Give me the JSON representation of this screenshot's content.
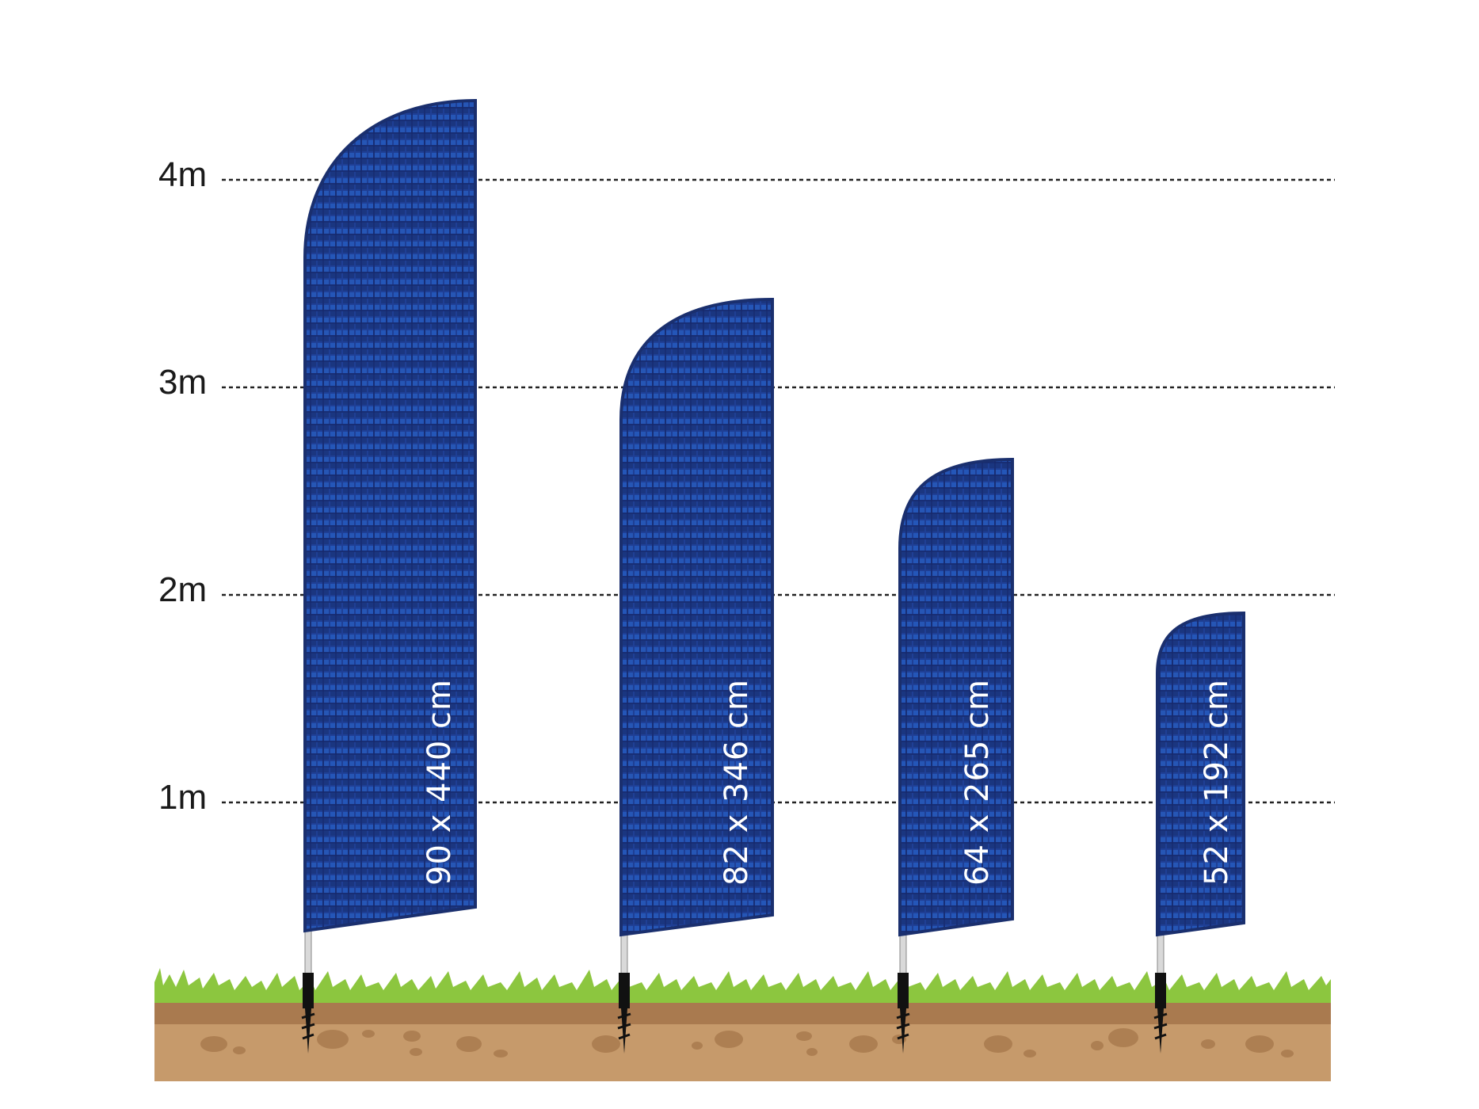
{
  "scale": {
    "labels": [
      "4m",
      "3m",
      "2m",
      "1m"
    ]
  },
  "flags": [
    {
      "size_label": "90 x 440 cm"
    },
    {
      "size_label": "82 x 346 cm"
    },
    {
      "size_label": "64 x 265 cm"
    },
    {
      "size_label": "52 x 192 cm"
    }
  ],
  "colors": {
    "flag": "#1f3d8c",
    "flag_border": "#1a2f6e",
    "grass": "#8cc63f",
    "soil": "#c69a6b",
    "soil_top": "#a97a4f",
    "gridline": "#222222"
  },
  "icons": {
    "ground": "grass-and-soil",
    "anchor": "ground-spike-icon"
  }
}
